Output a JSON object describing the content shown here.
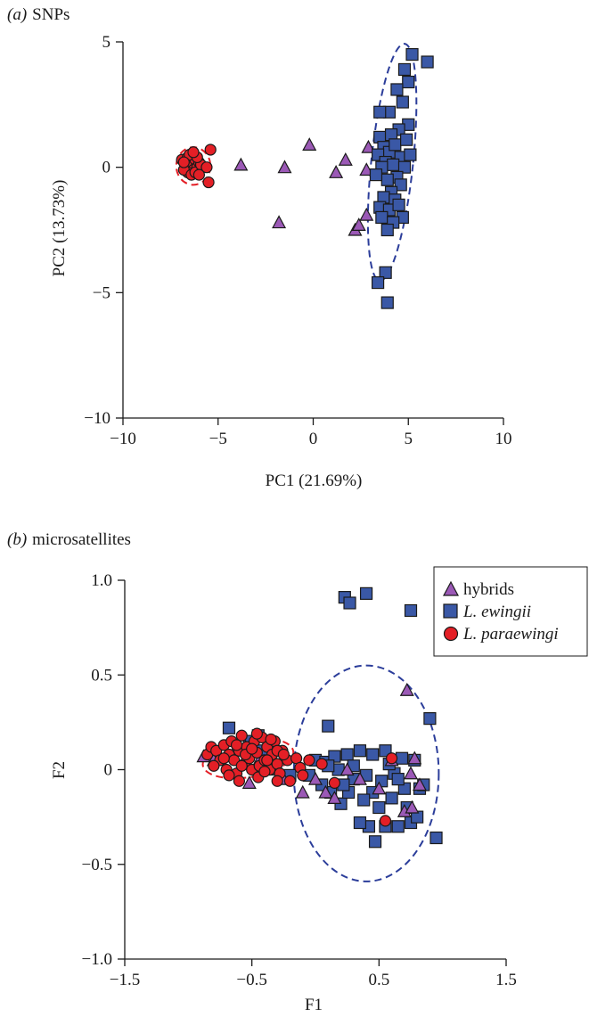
{
  "colors": {
    "hybrids_fill": "#9b59b6",
    "ewingii_fill": "#3a58a6",
    "paraewingi_fill": "#e41f26",
    "ellipse_blue": "#2b3d9a",
    "ellipse_red": "#e41f26",
    "marker_edge": "#1a1a1a"
  },
  "chart_data": [
    {
      "type": "scatter",
      "panel_label": "(a)",
      "title": "SNPs",
      "xlabel": "PC1 (21.69%)",
      "ylabel": "PC2 (13.73%)",
      "xlim": [
        -10,
        10
      ],
      "ylim": [
        -10,
        5
      ],
      "xticks": [
        -10,
        -5,
        0,
        5,
        10
      ],
      "yticks": [
        -10,
        -5,
        0,
        5
      ],
      "xtick_labels": [
        "−10",
        "−5",
        "0",
        "5",
        "10"
      ],
      "ytick_labels": [
        "−10",
        "−5",
        "0",
        "5"
      ],
      "grid": false,
      "series": [
        {
          "key": "paraewingi",
          "marker": "circle",
          "points": [
            [
              -6.9,
              0.3
            ],
            [
              -6.7,
              0.1
            ],
            [
              -6.6,
              0.4
            ],
            [
              -6.5,
              0.0
            ],
            [
              -6.4,
              0.2
            ],
            [
              -6.3,
              -0.1
            ],
            [
              -6.2,
              0.3
            ],
            [
              -6.1,
              0.0
            ],
            [
              -6.0,
              0.2
            ],
            [
              -6.6,
              -0.2
            ],
            [
              -6.8,
              -0.1
            ],
            [
              -6.4,
              -0.3
            ],
            [
              -6.2,
              -0.2
            ],
            [
              -5.9,
              0.1
            ],
            [
              -6.5,
              0.5
            ],
            [
              -6.1,
              0.4
            ],
            [
              -5.4,
              0.7
            ],
            [
              -5.5,
              -0.6
            ],
            [
              -5.6,
              0.0
            ],
            [
              -6.3,
              0.6
            ],
            [
              -6.8,
              0.2
            ],
            [
              -6.0,
              -0.3
            ]
          ]
        },
        {
          "key": "hybrids",
          "marker": "triangle",
          "points": [
            [
              -3.8,
              0.1
            ],
            [
              -1.5,
              0.0
            ],
            [
              -0.2,
              0.9
            ],
            [
              -1.8,
              -2.2
            ],
            [
              1.2,
              -0.2
            ],
            [
              1.7,
              0.3
            ],
            [
              2.9,
              0.8
            ],
            [
              2.8,
              -0.1
            ],
            [
              2.2,
              -2.5
            ],
            [
              2.4,
              -2.3
            ],
            [
              2.8,
              -1.9
            ]
          ]
        },
        {
          "key": "ewingii",
          "marker": "square",
          "points": [
            [
              5.2,
              4.5
            ],
            [
              6.0,
              4.2
            ],
            [
              4.8,
              3.9
            ],
            [
              5.0,
              3.4
            ],
            [
              4.7,
              2.6
            ],
            [
              4.4,
              3.1
            ],
            [
              4.0,
              2.2
            ],
            [
              3.5,
              2.2
            ],
            [
              5.0,
              1.7
            ],
            [
              4.5,
              1.5
            ],
            [
              3.5,
              1.2
            ],
            [
              4.1,
              1.3
            ],
            [
              3.7,
              0.8
            ],
            [
              4.0,
              0.6
            ],
            [
              4.3,
              0.9
            ],
            [
              4.9,
              1.1
            ],
            [
              3.4,
              0.5
            ],
            [
              4.6,
              0.4
            ],
            [
              5.1,
              0.5
            ],
            [
              3.8,
              0.2
            ],
            [
              4.2,
              0.1
            ],
            [
              4.8,
              0.0
            ],
            [
              3.6,
              0.0
            ],
            [
              4.4,
              -0.4
            ],
            [
              3.9,
              -0.5
            ],
            [
              4.6,
              -0.7
            ],
            [
              4.1,
              -1.0
            ],
            [
              3.7,
              -1.2
            ],
            [
              4.3,
              -1.3
            ],
            [
              3.5,
              -1.6
            ],
            [
              4.0,
              -1.7
            ],
            [
              4.7,
              -2.0
            ],
            [
              3.6,
              -2.0
            ],
            [
              4.2,
              -2.2
            ],
            [
              3.9,
              -2.5
            ],
            [
              3.8,
              -4.2
            ],
            [
              3.4,
              -4.6
            ],
            [
              3.9,
              -5.4
            ],
            [
              4.5,
              -1.5
            ],
            [
              3.3,
              -0.3
            ]
          ]
        }
      ],
      "ellipses": [
        {
          "color_key": "ellipse_red",
          "cx": -6.3,
          "cy": 0.05,
          "rx": 0.9,
          "ry": 0.75,
          "angle": 0
        },
        {
          "color_key": "ellipse_blue",
          "cx": 4.15,
          "cy": 0.2,
          "rx": 1.1,
          "ry": 4.75,
          "angle": 6
        }
      ]
    },
    {
      "type": "scatter",
      "panel_label": "(b)",
      "title": "microsatellites",
      "xlabel": "F1",
      "ylabel": "F2",
      "xlim": [
        -1.5,
        1.5
      ],
      "ylim": [
        -1.0,
        1.0
      ],
      "xticks": [
        -1.5,
        -0.5,
        0.5,
        1.5
      ],
      "yticks": [
        -1.0,
        -0.5,
        0,
        0.5,
        1.0
      ],
      "xtick_labels": [
        "−1.5",
        "−0.5",
        "0.5",
        "1.5"
      ],
      "ytick_labels": [
        "−1.0",
        "−0.5",
        "0",
        "0.5",
        "1.0"
      ],
      "grid": false,
      "legend_position": "top-right",
      "legend": [
        {
          "series": "hybrids",
          "label": "hybrids",
          "italic": false
        },
        {
          "series": "ewingii",
          "label": "L. ewingii",
          "italic": true
        },
        {
          "series": "paraewingi",
          "label": "L. paraewingi",
          "italic": true
        }
      ],
      "series": [
        {
          "key": "ewingii",
          "marker": "square",
          "points": [
            [
              0.23,
              0.91
            ],
            [
              0.27,
              0.88
            ],
            [
              0.4,
              0.93
            ],
            [
              0.75,
              0.84
            ],
            [
              0.9,
              0.27
            ],
            [
              0.95,
              -0.36
            ],
            [
              -0.68,
              0.22
            ],
            [
              0.1,
              0.23
            ],
            [
              -0.52,
              0.15
            ],
            [
              -0.45,
              0.18
            ],
            [
              -0.42,
              0.1
            ],
            [
              0.0,
              0.05
            ],
            [
              0.08,
              0.04
            ],
            [
              0.15,
              0.07
            ],
            [
              0.25,
              0.08
            ],
            [
              0.35,
              0.1
            ],
            [
              0.45,
              0.08
            ],
            [
              0.55,
              0.1
            ],
            [
              0.68,
              0.06
            ],
            [
              0.78,
              0.05
            ],
            [
              0.82,
              -0.1
            ],
            [
              0.72,
              -0.2
            ],
            [
              0.75,
              -0.28
            ],
            [
              0.6,
              -0.15
            ],
            [
              0.5,
              -0.2
            ],
            [
              0.42,
              -0.3
            ],
            [
              0.35,
              -0.28
            ],
            [
              0.2,
              -0.18
            ],
            [
              0.12,
              -0.12
            ],
            [
              0.05,
              -0.08
            ],
            [
              -0.05,
              -0.03
            ],
            [
              0.3,
              -0.05
            ],
            [
              0.4,
              -0.03
            ],
            [
              0.52,
              -0.06
            ],
            [
              0.62,
              -0.02
            ],
            [
              0.7,
              -0.1
            ],
            [
              0.18,
              0.0
            ],
            [
              0.26,
              -0.12
            ],
            [
              0.47,
              -0.38
            ],
            [
              0.55,
              -0.3
            ],
            [
              0.65,
              -0.3
            ],
            [
              0.8,
              -0.25
            ],
            [
              0.1,
              0.02
            ],
            [
              0.3,
              0.02
            ],
            [
              0.58,
              0.03
            ],
            [
              0.45,
              -0.12
            ],
            [
              0.85,
              -0.08
            ],
            [
              0.65,
              -0.05
            ],
            [
              0.22,
              -0.08
            ],
            [
              0.38,
              -0.16
            ],
            [
              -0.2,
              -0.03
            ]
          ]
        },
        {
          "key": "hybrids",
          "marker": "triangle",
          "points": [
            [
              0.72,
              0.42
            ],
            [
              -0.88,
              0.07
            ],
            [
              -0.8,
              0.05
            ],
            [
              -0.45,
              0.04
            ],
            [
              -0.52,
              -0.07
            ],
            [
              -0.25,
              -0.05
            ],
            [
              -0.35,
              0.0
            ],
            [
              0.08,
              -0.12
            ],
            [
              0.25,
              0.0
            ],
            [
              0.35,
              -0.05
            ],
            [
              0.5,
              -0.1
            ],
            [
              0.6,
              0.05
            ],
            [
              0.75,
              -0.02
            ],
            [
              0.78,
              0.06
            ],
            [
              0.82,
              -0.08
            ],
            [
              0.7,
              -0.22
            ],
            [
              0.76,
              -0.2
            ],
            [
              0.15,
              -0.15
            ],
            [
              -0.1,
              -0.12
            ],
            [
              -0.65,
              0.08
            ],
            [
              -0.55,
              0.12
            ],
            [
              0.0,
              -0.05
            ]
          ]
        },
        {
          "key": "paraewingi",
          "marker": "circle",
          "points": [
            [
              -0.85,
              0.08
            ],
            [
              -0.82,
              0.12
            ],
            [
              -0.78,
              0.1
            ],
            [
              -0.75,
              0.05
            ],
            [
              -0.72,
              0.13
            ],
            [
              -0.7,
              0.0
            ],
            [
              -0.68,
              0.08
            ],
            [
              -0.66,
              0.15
            ],
            [
              -0.64,
              0.05
            ],
            [
              -0.62,
              -0.02
            ],
            [
              -0.6,
              0.1
            ],
            [
              -0.58,
              0.18
            ],
            [
              -0.56,
              0.03
            ],
            [
              -0.54,
              0.12
            ],
            [
              -0.52,
              0.06
            ],
            [
              -0.5,
              0.0
            ],
            [
              -0.48,
              0.15
            ],
            [
              -0.46,
              0.09
            ],
            [
              -0.44,
              0.02
            ],
            [
              -0.42,
              0.17
            ],
            [
              -0.4,
              0.05
            ],
            [
              -0.38,
              0.12
            ],
            [
              -0.36,
              0.0
            ],
            [
              -0.34,
              0.08
            ],
            [
              -0.32,
              0.15
            ],
            [
              -0.3,
              0.03
            ],
            [
              -0.28,
              -0.02
            ],
            [
              -0.26,
              0.1
            ],
            [
              -0.6,
              -0.06
            ],
            [
              -0.72,
              0.06
            ],
            [
              -0.8,
              0.02
            ],
            [
              -0.55,
              0.08
            ],
            [
              -0.45,
              -0.04
            ],
            [
              -0.38,
              0.05
            ],
            [
              -0.62,
              0.13
            ],
            [
              -0.5,
              0.11
            ],
            [
              -0.4,
              -0.01
            ],
            [
              -0.3,
              0.1
            ],
            [
              -0.35,
              0.16
            ],
            [
              -0.46,
              0.19
            ],
            [
              -0.22,
              0.05
            ],
            [
              -0.15,
              0.06
            ],
            [
              -0.12,
              0.01
            ],
            [
              -0.05,
              0.05
            ],
            [
              0.05,
              0.03
            ],
            [
              0.15,
              -0.07
            ],
            [
              0.55,
              -0.27
            ],
            [
              0.6,
              0.06
            ],
            [
              -0.68,
              -0.03
            ],
            [
              -0.58,
              0.02
            ],
            [
              -0.3,
              -0.06
            ],
            [
              -0.25,
              0.08
            ],
            [
              -0.2,
              -0.06
            ],
            [
              -0.1,
              -0.03
            ]
          ]
        }
      ],
      "ellipses": [
        {
          "color_key": "ellipse_red",
          "cx": -0.53,
          "cy": 0.06,
          "rx": 0.36,
          "ry": 0.1,
          "angle": -9
        },
        {
          "color_key": "ellipse_blue",
          "cx": 0.4,
          "cy": -0.02,
          "rx": 0.57,
          "ry": 0.57,
          "angle": 0
        }
      ]
    }
  ]
}
